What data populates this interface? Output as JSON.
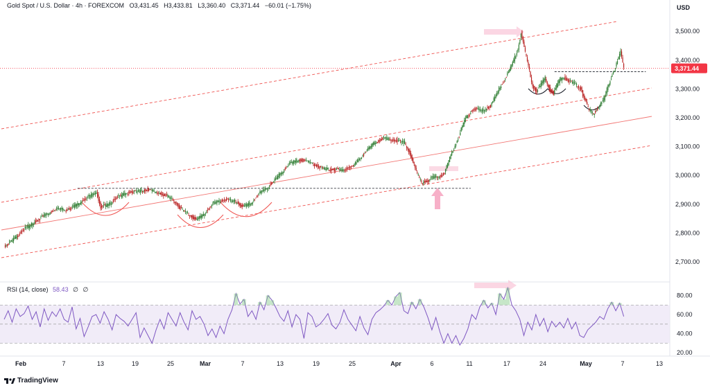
{
  "header": {
    "symbol": "Gold Spot / U.S. Dollar · 4h · FOREXCOM",
    "open": "O3,431.45",
    "high": "H3,433.81",
    "low": "L3,360.40",
    "close": "C3,371.44",
    "change": "−60.01 (−1.75%)"
  },
  "rsi_header": {
    "label": "RSI (14, close)",
    "value": "58.43",
    "extra1": "∅",
    "extra2": "∅"
  },
  "currency": "USD",
  "brand": "TradingView",
  "colors": {
    "up": "#2e7d32",
    "down": "#b71c1c",
    "channel": "#ef5350",
    "rsi": "#7e57c2",
    "rsi_fill": "#ede7f6",
    "price_badge": "#f23645"
  },
  "chart_data": [
    {
      "type": "candlestick",
      "title": "Gold Spot / U.S. Dollar · 4h · FOREXCOM",
      "x_ticks": [
        "Feb",
        "7",
        "13",
        "19",
        "25",
        "Mar",
        "7",
        "13",
        "19",
        "25",
        "Apr",
        "6",
        "11",
        "17",
        "24",
        "May",
        "7",
        "13"
      ],
      "y_ticks": [
        2700,
        2800,
        2900,
        3000,
        3100,
        3200,
        3300,
        3400,
        3500
      ],
      "y_tick_labels": [
        "2,700.00",
        "2,800.00",
        "2,900.00",
        "3,000.00",
        "3,100.00",
        "3,200.00",
        "3,300.00",
        "3,400.00",
        "3,500.00"
      ],
      "ylim": [
        2635,
        3575
      ],
      "last_price": 3371.44,
      "last_price_label": "3,371.44",
      "price_path": [
        [
          0,
          2752
        ],
        [
          8,
          2775
        ],
        [
          18,
          2810
        ],
        [
          30,
          2840
        ],
        [
          40,
          2865
        ],
        [
          52,
          2885
        ],
        [
          60,
          2880
        ],
        [
          70,
          2900
        ],
        [
          80,
          2925
        ],
        [
          88,
          2942
        ],
        [
          92,
          2890
        ],
        [
          100,
          2900
        ],
        [
          108,
          2925
        ],
        [
          118,
          2940
        ],
        [
          128,
          2945
        ],
        [
          138,
          2950
        ],
        [
          150,
          2935
        ],
        [
          160,
          2920
        ],
        [
          168,
          2885
        ],
        [
          176,
          2865
        ],
        [
          183,
          2845
        ],
        [
          192,
          2870
        ],
        [
          200,
          2905
        ],
        [
          210,
          2915
        ],
        [
          220,
          2910
        ],
        [
          228,
          2890
        ],
        [
          236,
          2905
        ],
        [
          244,
          2940
        ],
        [
          252,
          2960
        ],
        [
          262,
          3000
        ],
        [
          272,
          3040
        ],
        [
          282,
          3055
        ],
        [
          292,
          3045
        ],
        [
          302,
          3025
        ],
        [
          312,
          3020
        ],
        [
          322,
          3018
        ],
        [
          332,
          3030
        ],
        [
          342,
          3070
        ],
        [
          352,
          3110
        ],
        [
          362,
          3130
        ],
        [
          372,
          3120
        ],
        [
          382,
          3115
        ],
        [
          388,
          3065
        ],
        [
          394,
          3005
        ],
        [
          398,
          2975
        ],
        [
          404,
          2980
        ],
        [
          410,
          2995
        ],
        [
          416,
          2995
        ],
        [
          420,
          3010
        ],
        [
          426,
          3070
        ],
        [
          432,
          3120
        ],
        [
          440,
          3200
        ],
        [
          448,
          3230
        ],
        [
          456,
          3225
        ],
        [
          464,
          3240
        ],
        [
          472,
          3300
        ],
        [
          480,
          3350
        ],
        [
          486,
          3400
        ],
        [
          490,
          3435
        ],
        [
          493,
          3495
        ],
        [
          496,
          3440
        ],
        [
          500,
          3380
        ],
        [
          504,
          3310
        ],
        [
          508,
          3290
        ],
        [
          512,
          3315
        ],
        [
          516,
          3340
        ],
        [
          520,
          3300
        ],
        [
          524,
          3285
        ],
        [
          528,
          3320
        ],
        [
          532,
          3340
        ],
        [
          538,
          3330
        ],
        [
          544,
          3320
        ],
        [
          550,
          3300
        ],
        [
          554,
          3260
        ],
        [
          558,
          3225
        ],
        [
          562,
          3215
        ],
        [
          566,
          3230
        ],
        [
          572,
          3265
        ],
        [
          576,
          3310
        ],
        [
          580,
          3350
        ],
        [
          584,
          3385
        ],
        [
          588,
          3430
        ],
        [
          591,
          3371
        ]
      ]
    },
    {
      "type": "line",
      "title": "RSI (14, close)",
      "y_ticks": [
        20,
        40,
        60,
        80
      ],
      "y_tick_labels": [
        "20.00",
        "40.00",
        "60.00",
        "80.00"
      ],
      "ylim": [
        18,
        92
      ],
      "bands": [
        30,
        70
      ],
      "last_value": 58.43,
      "values": [
        55,
        64,
        52,
        66,
        58,
        61,
        69,
        55,
        63,
        47,
        66,
        54,
        63,
        58,
        66,
        55,
        52,
        68,
        45,
        56,
        37,
        47,
        58,
        60,
        51,
        63,
        55,
        44,
        60,
        56,
        53,
        48,
        55,
        62,
        36,
        46,
        38,
        30,
        44,
        55,
        45,
        62,
        55,
        48,
        62,
        52,
        44,
        64,
        55,
        58,
        50,
        38,
        45,
        36,
        48,
        40,
        55,
        65,
        82,
        71,
        76,
        58,
        64,
        55,
        73,
        65,
        80,
        75,
        67,
        58,
        53,
        64,
        47,
        60,
        55,
        35,
        62,
        58,
        47,
        50,
        55,
        61,
        49,
        45,
        52,
        65,
        55,
        49,
        43,
        58,
        46,
        39,
        55,
        62,
        65,
        69,
        75,
        70,
        79,
        83,
        64,
        61,
        73,
        66,
        76,
        68,
        57,
        44,
        57,
        42,
        30,
        40,
        30,
        38,
        28,
        35,
        45,
        60,
        55,
        68,
        75,
        67,
        72,
        60,
        82,
        76,
        88,
        70,
        64,
        55,
        38,
        52,
        44,
        60,
        48,
        56,
        42,
        53,
        47,
        52,
        46,
        56,
        45,
        52,
        38,
        36,
        44,
        48,
        52,
        58,
        55,
        66,
        73,
        64,
        72,
        58
      ]
    }
  ]
}
